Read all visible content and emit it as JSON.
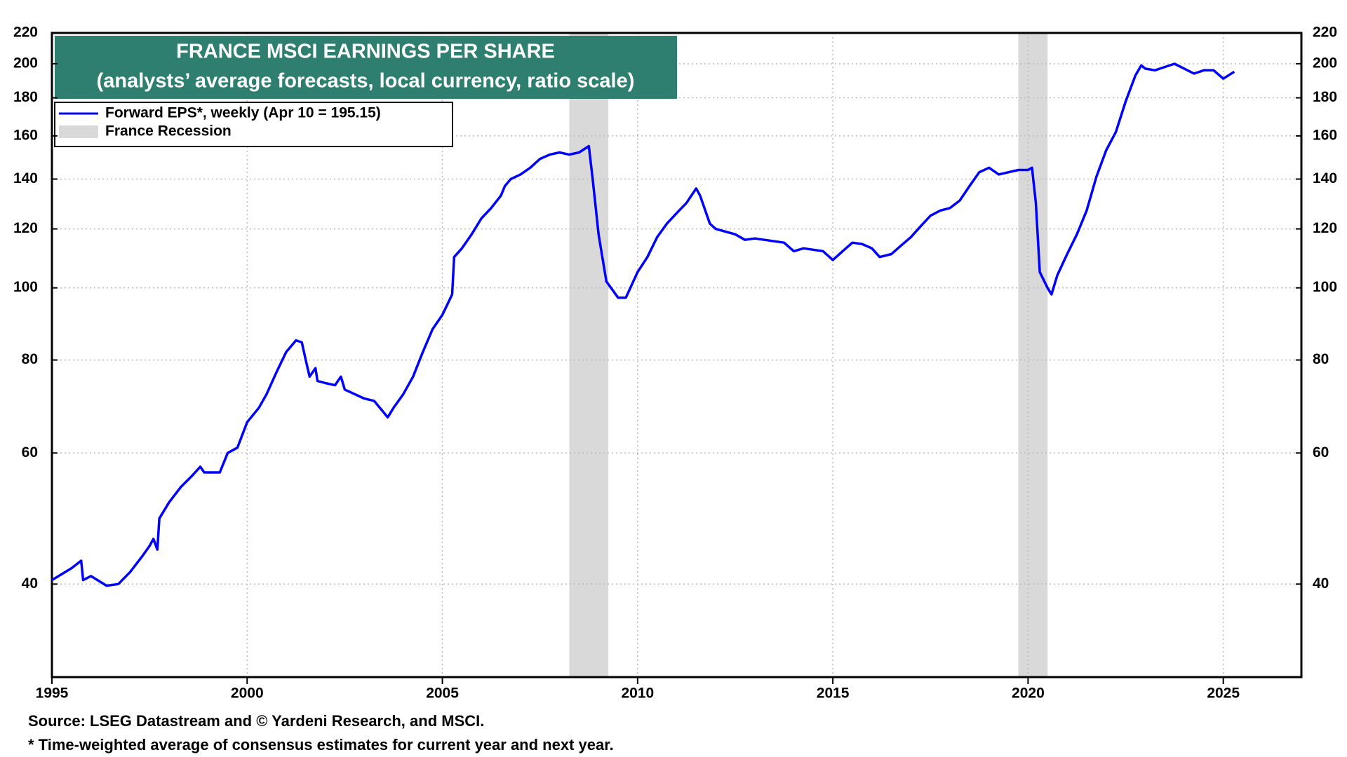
{
  "chart_data": {
    "type": "line",
    "title": "FRANCE MSCI EARNINGS PER SHARE",
    "subtitle": "(analysts’ average forecasts, local currency, ratio scale)",
    "source": "Source: LSEG Datastream and © Yardeni Research, and MSCI.",
    "footnote": "* Time-weighted average of consensus estimates for current year and next year.",
    "log_scale": true,
    "grid": true,
    "xlim": [
      1995,
      2027
    ],
    "xticks": [
      1995,
      2000,
      2005,
      2010,
      2015,
      2020,
      2025
    ],
    "ylim": [
      30,
      220
    ],
    "yticks": [
      40,
      60,
      80,
      100,
      120,
      140,
      160,
      180,
      200,
      220
    ],
    "recession_label": "France Recession",
    "recession_color": "#d9d9d9",
    "recessions": [
      [
        2008.25,
        2009.25
      ],
      [
        2019.75,
        2020.5
      ]
    ],
    "x": [
      1995.0,
      1995.5,
      1995.75,
      1995.8,
      1996.0,
      1996.4,
      1996.7,
      1997.0,
      1997.3,
      1997.5,
      1997.6,
      1997.7,
      1997.75,
      1998.0,
      1998.3,
      1998.6,
      1998.8,
      1998.9,
      1999.3,
      1999.5,
      1999.75,
      2000.0,
      2000.3,
      2000.5,
      2000.75,
      2001.0,
      2001.25,
      2001.4,
      2001.5,
      2001.6,
      2001.75,
      2001.8,
      2002.0,
      2002.25,
      2002.4,
      2002.5,
      2002.75,
      2003.0,
      2003.25,
      2003.5,
      2003.6,
      2003.75,
      2004.0,
      2004.25,
      2004.5,
      2004.75,
      2005.0,
      2005.25,
      2005.3,
      2005.5,
      2005.75,
      2006.0,
      2006.25,
      2006.5,
      2006.6,
      2006.75,
      2007.0,
      2007.25,
      2007.5,
      2007.75,
      2008.0,
      2008.25,
      2008.5,
      2008.75,
      2008.85,
      2009.0,
      2009.2,
      2009.5,
      2009.7,
      2010.0,
      2010.25,
      2010.5,
      2010.75,
      2011.0,
      2011.25,
      2011.5,
      2011.6,
      2011.85,
      2012.0,
      2012.25,
      2012.5,
      2012.75,
      2013.0,
      2013.25,
      2013.5,
      2013.75,
      2014.0,
      2014.25,
      2014.5,
      2014.75,
      2015.0,
      2015.25,
      2015.5,
      2015.75,
      2016.0,
      2016.2,
      2016.5,
      2016.75,
      2017.0,
      2017.25,
      2017.5,
      2017.75,
      2018.0,
      2018.25,
      2018.5,
      2018.75,
      2019.0,
      2019.25,
      2019.5,
      2019.75,
      2020.0,
      2020.1,
      2020.2,
      2020.3,
      2020.5,
      2020.6,
      2020.75,
      2021.0,
      2021.25,
      2021.5,
      2021.75,
      2022.0,
      2022.25,
      2022.5,
      2022.75,
      2022.9,
      2023.0,
      2023.25,
      2023.5,
      2023.75,
      2024.0,
      2024.25,
      2024.5,
      2024.75,
      2025.0,
      2025.28
    ],
    "series": [
      {
        "name": "Forward EPS*, weekly (Apr 10 = 195.15)",
        "color": "#0000ff",
        "values": [
          40.5,
          42,
          43,
          40.5,
          41,
          39.8,
          40,
          41.5,
          43.5,
          45,
          46,
          44.5,
          49,
          51.5,
          54,
          56,
          57.5,
          56.5,
          56.5,
          60,
          61,
          66,
          69,
          72,
          77,
          82,
          85,
          84.5,
          80,
          76,
          78,
          75,
          74.5,
          74,
          76,
          73,
          72,
          71,
          70.5,
          68,
          67,
          69,
          72,
          76,
          82,
          88,
          92,
          98,
          110,
          113,
          118,
          124,
          128,
          133,
          137,
          140,
          142,
          145,
          149,
          151,
          152,
          151,
          152,
          155,
          140,
          118,
          102,
          97,
          97,
          105,
          110,
          117,
          122,
          126,
          130,
          136,
          133,
          122,
          120,
          119,
          118,
          116,
          116.5,
          116,
          115.5,
          115,
          112,
          113,
          112.5,
          112,
          109,
          112,
          115,
          114.5,
          113,
          110,
          111,
          114,
          117,
          121,
          125,
          127,
          128,
          131,
          137,
          143,
          145,
          142,
          143,
          144,
          144,
          145,
          130,
          105,
          100,
          98,
          104,
          111,
          118,
          127,
          141,
          153,
          162,
          178,
          193,
          199,
          197,
          196,
          198,
          200,
          197,
          194,
          196,
          196,
          191,
          195.15
        ]
      }
    ]
  }
}
